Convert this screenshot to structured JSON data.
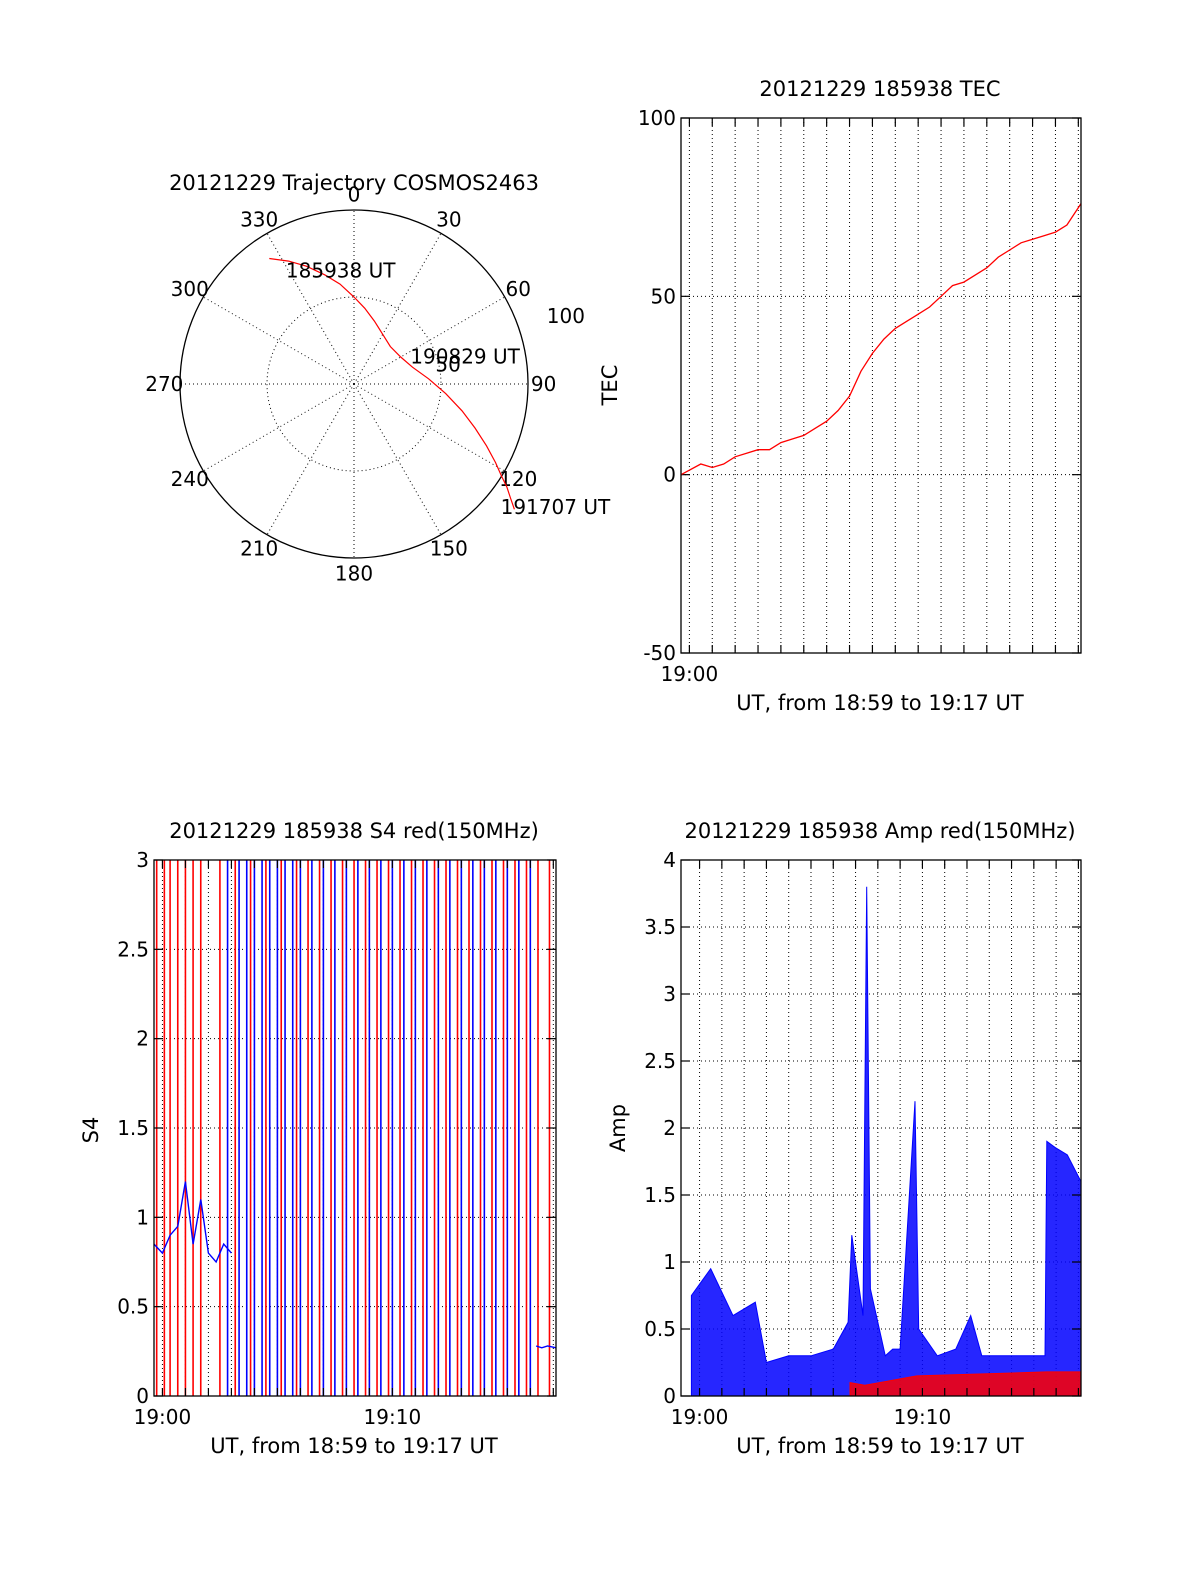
{
  "chart_data": [
    {
      "type": "polar",
      "title": "20121229 Trajectory COSMOS2463",
      "azimuth_labels": [
        "0",
        "30",
        "60",
        "90",
        "120",
        "150",
        "180",
        "210",
        "240",
        "270",
        "300",
        "330"
      ],
      "radial_labels": [
        "50",
        "100"
      ],
      "rlim": [
        0,
        100
      ],
      "series": [
        {
          "color": "#ff0000",
          "points": [
            [
              326,
              87
            ],
            [
              332,
              80
            ],
            [
              338,
              73
            ],
            [
              345,
              65
            ],
            [
              352,
              58
            ],
            [
              0,
              50
            ],
            [
              8,
              44
            ],
            [
              18,
              38
            ],
            [
              30,
              33
            ],
            [
              44,
              30
            ],
            [
              60,
              31
            ],
            [
              74,
              35
            ],
            [
              86,
              43
            ],
            [
              96,
              53
            ],
            [
              104,
              64
            ],
            [
              110,
              74
            ],
            [
              115,
              84
            ],
            [
              119,
              93
            ],
            [
              122,
              100
            ],
            [
              124,
              106
            ],
            [
              126,
              111
            ],
            [
              128,
              117
            ]
          ]
        }
      ],
      "annotations": [
        {
          "text": "185938 UT",
          "az": 329,
          "r": 76
        },
        {
          "text": "190829 UT",
          "az": 64,
          "r": 36
        },
        {
          "text": "191707 UT",
          "az": 130,
          "r": 110
        }
      ]
    },
    {
      "type": "line",
      "title": "20121229 185938 TEC",
      "xlabel": "UT, from 18:59 to 19:17 UT",
      "ylabel": "TEC",
      "xlim": [
        "18:59:38",
        "19:17:07"
      ],
      "ylim": [
        -50,
        100
      ],
      "yticks": [
        -50,
        0,
        50,
        100
      ],
      "xtick_labels": [
        {
          "t": "19:00:00",
          "label": "19:00"
        }
      ],
      "grid": true,
      "series": [
        {
          "color": "#ff0000",
          "x": [
            "18:59:38",
            "19:00:30",
            "19:01:00",
            "19:01:30",
            "19:02:00",
            "19:02:30",
            "19:03:00",
            "19:03:30",
            "19:04:00",
            "19:04:30",
            "19:05:00",
            "19:05:30",
            "19:06:00",
            "19:06:30",
            "19:07:00",
            "19:07:30",
            "19:08:00",
            "19:08:30",
            "19:09:00",
            "19:09:30",
            "19:10:00",
            "19:10:30",
            "19:11:00",
            "19:11:30",
            "19:12:00",
            "19:12:30",
            "19:13:00",
            "19:13:30",
            "19:14:00",
            "19:14:30",
            "19:15:00",
            "19:15:30",
            "19:16:00",
            "19:16:30",
            "19:17:07"
          ],
          "y": [
            0,
            3,
            2,
            3,
            5,
            6,
            7,
            7,
            9,
            10,
            11,
            13,
            15,
            18,
            22,
            29,
            34,
            38,
            41,
            43,
            45,
            47,
            50,
            53,
            54,
            56,
            58,
            61,
            63,
            65,
            66,
            67,
            68,
            70,
            76
          ]
        }
      ]
    },
    {
      "type": "line",
      "title": "20121229 185938 S4 red(150MHz)",
      "xlabel": "UT, from 18:59 to 19:17 UT",
      "ylabel": "S4",
      "xlim": [
        "18:59:38",
        "19:17:07"
      ],
      "ylim": [
        0,
        3
      ],
      "yticks": [
        0,
        0.5,
        1,
        1.5,
        2,
        2.5,
        3
      ],
      "xtick_labels": [
        {
          "t": "19:00:00",
          "label": "19:00"
        },
        {
          "t": "19:10:00",
          "label": "19:10"
        }
      ],
      "grid": true,
      "series": [
        {
          "color": "#ff0000",
          "spikes_x": [
            "18:59:45",
            "19:00:05",
            "19:00:20",
            "19:00:40",
            "19:01:00",
            "19:01:20",
            "19:01:40",
            "19:02:30",
            "19:03:10",
            "19:03:50",
            "19:04:30",
            "19:05:10",
            "19:05:50",
            "19:06:20",
            "19:06:50",
            "19:07:20",
            "19:07:50",
            "19:08:20",
            "19:08:50",
            "19:09:20",
            "19:09:50",
            "19:10:20",
            "19:10:50",
            "19:11:20",
            "19:11:50",
            "19:12:20",
            "19:12:50",
            "19:13:20",
            "19:13:50",
            "19:14:20",
            "19:14:50",
            "19:15:20",
            "19:15:50",
            "19:16:20",
            "19:16:50"
          ]
        },
        {
          "color": "#0000ff",
          "x": [
            "18:59:38",
            "19:00:00",
            "19:00:20",
            "19:00:40",
            "19:01:00",
            "19:01:20",
            "19:01:40",
            "19:02:00",
            "19:02:20",
            "19:02:40",
            "19:03:00"
          ],
          "y": [
            0.85,
            0.8,
            0.9,
            0.95,
            1.2,
            0.85,
            1.1,
            0.8,
            0.75,
            0.85,
            0.8
          ],
          "spikes_x": [
            "19:02:50",
            "19:03:20",
            "19:03:40",
            "19:04:00",
            "19:04:20",
            "19:04:40",
            "19:05:00",
            "19:05:20",
            "19:05:40",
            "19:06:00",
            "19:06:30",
            "19:07:00",
            "19:07:30",
            "19:08:00",
            "19:08:30",
            "19:09:00",
            "19:09:30",
            "19:10:00",
            "19:10:30",
            "19:11:00",
            "19:11:30",
            "19:12:00",
            "19:12:30",
            "19:13:00",
            "19:13:30",
            "19:14:00",
            "19:14:30",
            "19:15:00",
            "19:15:30",
            "19:16:00"
          ]
        },
        {
          "color": "#0000ff",
          "x": [
            "19:16:15",
            "19:16:30",
            "19:16:45",
            "19:17:07"
          ],
          "y": [
            0.28,
            0.27,
            0.28,
            0.27
          ]
        }
      ]
    },
    {
      "type": "line",
      "title": "20121229 185938 Amp red(150MHz)",
      "xlabel": "UT, from 18:59 to 19:17 UT",
      "ylabel": "Amp",
      "xlim": [
        "18:59:10",
        "19:17:07"
      ],
      "ylim": [
        0,
        4
      ],
      "yticks": [
        0,
        0.5,
        1,
        1.5,
        2,
        2.5,
        3,
        3.5,
        4
      ],
      "xtick_labels": [
        {
          "t": "19:00:00",
          "label": "19:00"
        },
        {
          "t": "19:10:00",
          "label": "19:10"
        }
      ],
      "grid": true,
      "series": [
        {
          "color": "#0000ff",
          "x": [
            "18:59:38",
            "19:00:30",
            "19:01:30",
            "19:02:30",
            "19:03:00",
            "19:04:00",
            "19:05:00",
            "19:06:00",
            "19:06:40",
            "19:06:50",
            "19:07:20",
            "19:07:30",
            "19:07:40",
            "19:08:20",
            "19:08:40",
            "19:09:00",
            "19:09:40",
            "19:09:50",
            "19:10:40",
            "19:11:30",
            "19:12:10",
            "19:12:40",
            "19:13:30",
            "19:14:30",
            "19:15:30",
            "19:15:35",
            "19:16:00",
            "19:16:30",
            "19:17:07"
          ],
          "y": [
            0.75,
            0.95,
            0.6,
            0.7,
            0.25,
            0.3,
            0.3,
            0.35,
            0.55,
            1.2,
            0.6,
            3.8,
            0.8,
            0.3,
            0.35,
            0.35,
            2.2,
            0.5,
            0.3,
            0.35,
            0.6,
            0.3,
            0.3,
            0.3,
            0.3,
            1.9,
            1.85,
            1.8,
            1.6
          ]
        },
        {
          "color": "#ff0000",
          "x": [
            "19:06:45",
            "19:07:25",
            "19:09:45",
            "19:15:35",
            "19:17:07"
          ],
          "y": [
            0.1,
            0.08,
            0.15,
            0.18,
            0.18
          ]
        }
      ]
    }
  ]
}
